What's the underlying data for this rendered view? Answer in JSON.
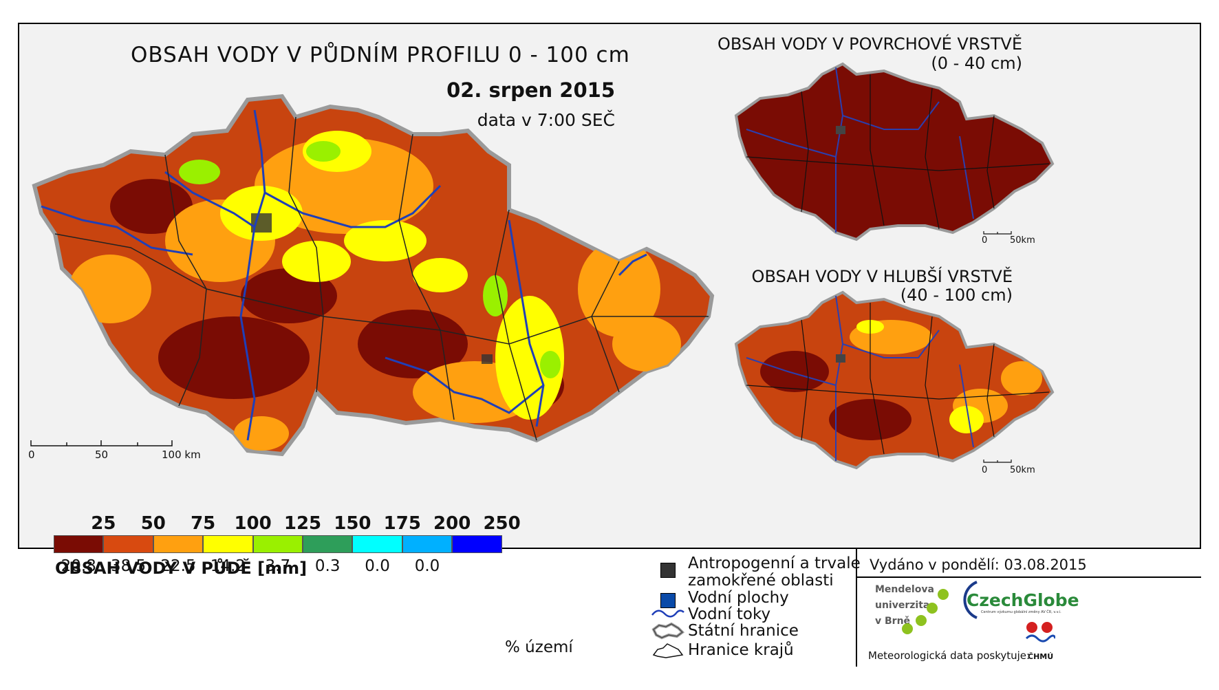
{
  "main_map": {
    "title": "OBSAH VODY V PŮDNÍM PROFILU 0 - 100 cm",
    "date": "02. srpen 2015",
    "time_note": "data v 7:00 SEČ",
    "scale": {
      "labels": [
        "0",
        "50",
        "100 km"
      ]
    }
  },
  "inset_top": {
    "title_line1": "OBSAH VODY V POVRCHOVÉ VRSTVĚ",
    "title_line2": "(0 - 40 cm)",
    "scale": {
      "labels": [
        "0",
        "50km"
      ]
    }
  },
  "inset_bottom": {
    "title_line1": "OBSAH VODY V HLUBŠÍ VRSTVĚ",
    "title_line2": "(40 - 100 cm)",
    "scale": {
      "labels": [
        "0",
        "50km"
      ]
    }
  },
  "colors": {
    "class_1": "#7a0c04",
    "class_2": "#d84a10",
    "class_3": "#ffa010",
    "class_4": "#ffff00",
    "class_5": "#9af000",
    "class_6": "#2e9e5a",
    "class_7": "#00ffff",
    "class_8": "#00b0ff",
    "class_9": "#0000ff",
    "rivers": "#1f3fb8",
    "borders": "#222222",
    "background": "#f2f2f2"
  },
  "legend": {
    "title": "OBSAH VODY V PŮDĚ [mm]",
    "breaks": [
      "25",
      "50",
      "75",
      "100",
      "125",
      "150",
      "175",
      "200",
      "250"
    ],
    "classes": [
      {
        "color": "#7a0c04",
        "percent": "20.8"
      },
      {
        "color": "#d84a10",
        "percent": "38.5"
      },
      {
        "color": "#ffa010",
        "percent": "22.5"
      },
      {
        "color": "#ffff00",
        "percent": "14.2"
      },
      {
        "color": "#9af000",
        "percent": "3.7"
      },
      {
        "color": "#2e9e5a",
        "percent": "0.3"
      },
      {
        "color": "#00ffff",
        "percent": "0.0"
      },
      {
        "color": "#00b0ff",
        "percent": "0.0"
      },
      {
        "color": "#0000ff",
        "percent": ""
      }
    ],
    "percent_unit": "% území"
  },
  "symbols": {
    "anthropogenic_line1": "Antropogenní a trvale",
    "anthropogenic_line2": "zamokřené oblasti",
    "water_bodies": "Vodní plochy",
    "rivers": "Vodní toky",
    "state_border": "Státní hranice",
    "region_border": "Hranice krajů",
    "icons": [
      "dark-square-icon",
      "blue-square-icon",
      "river-line-icon",
      "state-border-icon",
      "region-border-icon"
    ]
  },
  "footer": {
    "issued": "Vydáno v pondělí: 03.08.2015",
    "mendel_lines": [
      "Mendelova",
      "univerzita",
      "v Brně"
    ],
    "czechglobe": "CzechGlobe",
    "czechglobe_sub": "Centrum výzkumu globální změny AV ČR, v.v.i.",
    "data_provider": "Meteorologická data poskytuje:",
    "chmu": "ČHMÚ"
  }
}
